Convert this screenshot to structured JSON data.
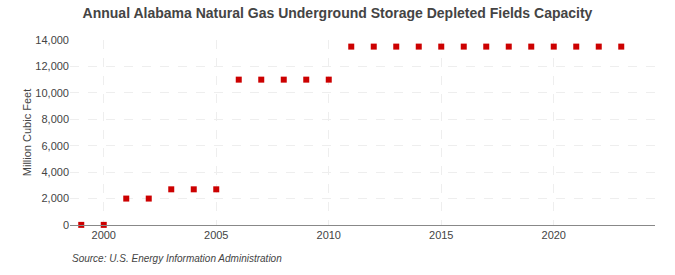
{
  "chart_data": {
    "type": "scatter",
    "title": "Annual Alabama Natural Gas Underground Storage Depleted Fields Capacity",
    "y_label": "Million Cubic Feet",
    "annotations": [
      "Source: U.S. Energy Information Administration"
    ],
    "x": [
      1999,
      2000,
      2001,
      2002,
      2003,
      2004,
      2005,
      2006,
      2007,
      2008,
      2009,
      2010,
      2011,
      2012,
      2013,
      2014,
      2015,
      2016,
      2017,
      2018,
      2019,
      2020,
      2021,
      2022,
      2023
    ],
    "values": [
      10,
      10,
      2000,
      2000,
      2700,
      2700,
      2700,
      11000,
      11000,
      11000,
      11000,
      11000,
      13500,
      13500,
      13500,
      13500,
      13500,
      13500,
      13500,
      13500,
      13500,
      13500,
      13500,
      13500,
      13500
    ],
    "color": "#cc0000",
    "marker": "square",
    "xlim": [
      1998.5,
      2024.5
    ],
    "xticks": [
      2000,
      2005,
      2010,
      2015,
      2020
    ],
    "ylim": [
      0,
      14000
    ],
    "yticks": [
      0,
      {
        "value": 2000,
        "label": "2,000"
      },
      {
        "value": 4000,
        "label": "4,000"
      },
      {
        "value": 6000,
        "label": "6,000"
      },
      {
        "value": 8000,
        "label": "8,000"
      },
      {
        "value": 10000,
        "label": "10,000"
      },
      {
        "value": 12000,
        "label": "12,000"
      },
      {
        "value": 14000,
        "label": "14,000"
      }
    ],
    "grid": true
  }
}
